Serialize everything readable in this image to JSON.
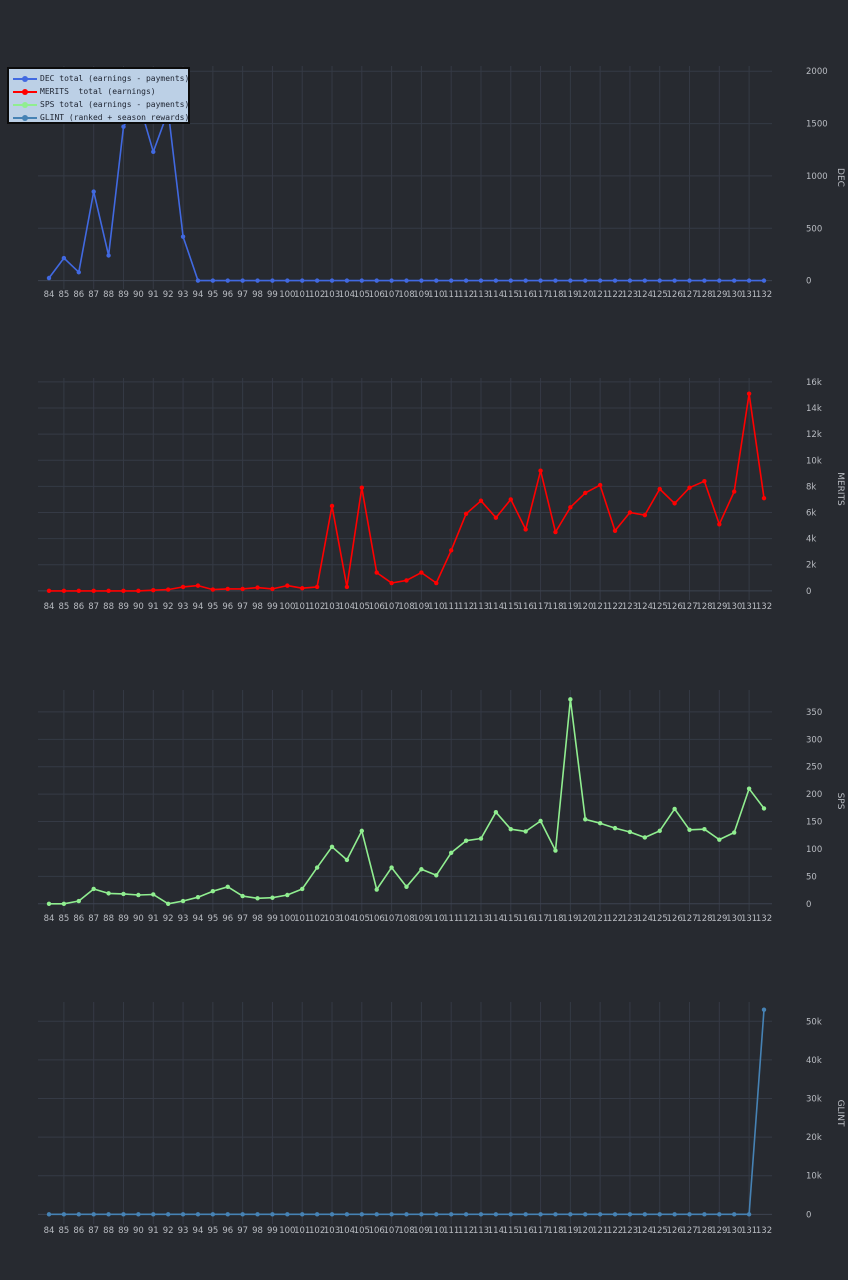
{
  "legend": [
    {
      "label": "DEC total (earnings - payments)",
      "color": "#4169e1"
    },
    {
      "label": "MERITS  total (earnings)",
      "color": "#ff0000"
    },
    {
      "label": "SPS total (earnings - payments)",
      "color": "#90ee90"
    },
    {
      "label": "GLINT (ranked + season rewards)",
      "color": "#4682b4"
    }
  ],
  "chart_data": [
    {
      "type": "line",
      "ylabel": "DEC",
      "color": "#4169e1",
      "x": [
        84,
        85,
        86,
        87,
        88,
        89,
        90,
        91,
        92,
        93,
        94,
        95,
        96,
        97,
        98,
        99,
        100,
        101,
        102,
        103,
        104,
        105,
        106,
        107,
        108,
        109,
        110,
        111,
        112,
        113,
        114,
        115,
        116,
        117,
        118,
        119,
        120,
        121,
        122,
        123,
        124,
        125,
        126,
        127,
        128,
        129,
        130,
        131,
        132
      ],
      "yticks": [
        0,
        500,
        1000,
        1500,
        2000
      ],
      "ytick_labels": [
        "0",
        "500",
        "1000",
        "1500",
        "2000"
      ],
      "ylim": [
        -80,
        2050
      ],
      "series": [
        {
          "values": [
            25,
            215,
            80,
            850,
            240,
            1470,
            1720,
            1230,
            1620,
            420,
            0,
            0,
            0,
            0,
            0,
            0,
            0,
            0,
            0,
            0,
            0,
            0,
            0,
            0,
            0,
            0,
            0,
            0,
            0,
            0,
            0,
            0,
            0,
            0,
            0,
            0,
            0,
            0,
            0,
            0,
            0,
            0,
            0,
            0,
            0,
            0,
            0,
            0,
            0
          ]
        }
      ]
    },
    {
      "type": "line",
      "ylabel": "MERITS",
      "color": "#ff0000",
      "x": [
        84,
        85,
        86,
        87,
        88,
        89,
        90,
        91,
        92,
        93,
        94,
        95,
        96,
        97,
        98,
        99,
        100,
        101,
        102,
        103,
        104,
        105,
        106,
        107,
        108,
        109,
        110,
        111,
        112,
        113,
        114,
        115,
        116,
        117,
        118,
        119,
        120,
        121,
        122,
        123,
        124,
        125,
        126,
        127,
        128,
        129,
        130,
        131,
        132
      ],
      "yticks": [
        0,
        2000,
        4000,
        6000,
        8000,
        10000,
        12000,
        14000,
        16000
      ],
      "ytick_labels": [
        "0",
        "2k",
        "4k",
        "6k",
        "8k",
        "10k",
        "12k",
        "14k",
        "16k"
      ],
      "ylim": [
        -700,
        16300
      ],
      "series": [
        {
          "values": [
            0,
            0,
            0,
            0,
            0,
            0,
            0,
            50,
            100,
            300,
            400,
            100,
            150,
            150,
            250,
            150,
            400,
            200,
            300,
            6500,
            300,
            7900,
            1400,
            600,
            800,
            1400,
            600,
            3100,
            5900,
            6900,
            5600,
            7000,
            4700,
            9200,
            4500,
            6400,
            7500,
            8100,
            4600,
            6000,
            5800,
            7800,
            6700,
            7900,
            8400,
            5100,
            7600,
            15100,
            7100
          ]
        }
      ]
    },
    {
      "type": "line",
      "ylabel": "SPS",
      "color": "#90ee90",
      "x": [
        84,
        85,
        86,
        87,
        88,
        89,
        90,
        91,
        92,
        93,
        94,
        95,
        96,
        97,
        98,
        99,
        100,
        101,
        102,
        103,
        104,
        105,
        106,
        107,
        108,
        109,
        110,
        111,
        112,
        113,
        114,
        115,
        116,
        117,
        118,
        119,
        120,
        121,
        122,
        123,
        124,
        125,
        126,
        127,
        128,
        129,
        130,
        131,
        132
      ],
      "yticks": [
        0,
        50,
        100,
        150,
        200,
        250,
        300,
        350
      ],
      "ytick_labels": [
        "0",
        "50",
        "100",
        "150",
        "200",
        "250",
        "300",
        "350"
      ],
      "ylim": [
        -15,
        390
      ],
      "series": [
        {
          "values": [
            0,
            0,
            5,
            27,
            19,
            18,
            16,
            17,
            0,
            5,
            12,
            23,
            31,
            14,
            10,
            11,
            16,
            27,
            66,
            104,
            80,
            133,
            26,
            66,
            31,
            63,
            52,
            93,
            115,
            119,
            167,
            136,
            132,
            151,
            97,
            373,
            154,
            147,
            138,
            131,
            121,
            133,
            173,
            135,
            136,
            117,
            130,
            210,
            174
          ]
        }
      ]
    },
    {
      "type": "line",
      "ylabel": "GLINT",
      "color": "#4682b4",
      "x": [
        84,
        85,
        86,
        87,
        88,
        89,
        90,
        91,
        92,
        93,
        94,
        95,
        96,
        97,
        98,
        99,
        100,
        101,
        102,
        103,
        104,
        105,
        106,
        107,
        108,
        109,
        110,
        111,
        112,
        113,
        114,
        115,
        116,
        117,
        118,
        119,
        120,
        121,
        122,
        123,
        124,
        125,
        126,
        127,
        128,
        129,
        130,
        131,
        132
      ],
      "yticks": [
        0,
        10000,
        20000,
        30000,
        40000,
        50000
      ],
      "ytick_labels": [
        "0",
        "10k",
        "20k",
        "30k",
        "40k",
        "50k"
      ],
      "ylim": [
        -2500,
        55000
      ],
      "series": [
        {
          "values": [
            0,
            0,
            0,
            0,
            0,
            0,
            0,
            0,
            0,
            0,
            0,
            0,
            0,
            0,
            0,
            0,
            0,
            0,
            0,
            0,
            0,
            0,
            0,
            0,
            0,
            0,
            0,
            0,
            0,
            0,
            0,
            0,
            0,
            0,
            0,
            0,
            0,
            0,
            0,
            0,
            0,
            0,
            0,
            0,
            0,
            0,
            0,
            0,
            53000
          ]
        }
      ]
    }
  ]
}
